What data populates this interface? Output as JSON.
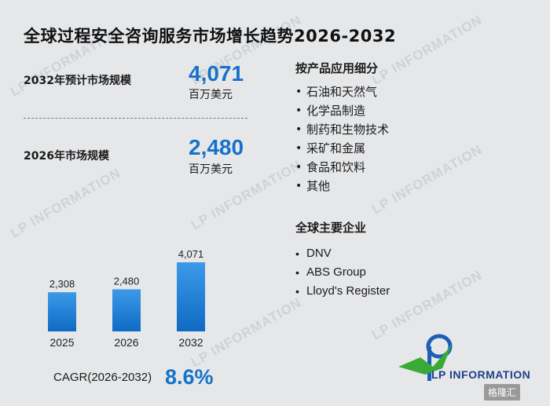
{
  "title": "全球过程安全咨询服务市场增长趋势2026-2032",
  "stats": [
    {
      "label": "2032年预计市场规模",
      "value": "4,071",
      "unit": "百万美元"
    },
    {
      "label": "2026年市场规模",
      "value": "2,480",
      "unit": "百万美元"
    }
  ],
  "chart_data": {
    "type": "bar",
    "categories": [
      "2025",
      "2026",
      "2032"
    ],
    "values": [
      2308,
      2480,
      4071
    ],
    "value_labels": [
      "2,308",
      "2,480",
      "4,071"
    ],
    "title": "",
    "xlabel": "",
    "ylabel": "",
    "ylim": [
      0,
      4071
    ],
    "bar_color": "#1c7fd6",
    "grid": false
  },
  "cagr": {
    "label": "CAGR(2026-2032)",
    "value": "8.6%"
  },
  "segments": {
    "heading": "按产品应用细分",
    "items": [
      "石油和天然气",
      "化学品制造",
      "制药和生物技术",
      "采矿和金属",
      "食品和饮料",
      "其他"
    ]
  },
  "companies": {
    "heading": "全球主要企业",
    "items": [
      "DNV",
      "ABS Group",
      "Lloyd's Register"
    ]
  },
  "watermark": {
    "text": "LP INFORMATION"
  },
  "logo": {
    "text": "LP INFORMATION",
    "colors": {
      "blue": "#1d5fb8",
      "green": "#3aa935"
    }
  },
  "corner_badge": "格隆汇",
  "colors": {
    "accent": "#1672c9",
    "background": "#e6e7e9"
  }
}
